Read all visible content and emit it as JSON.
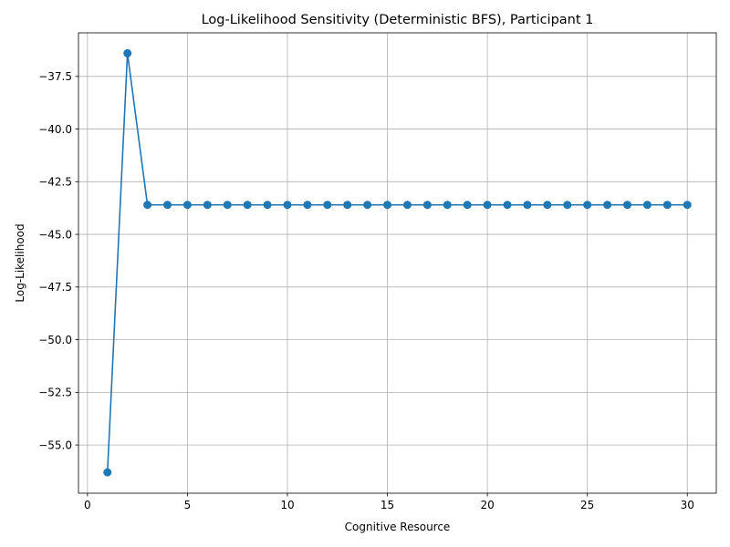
{
  "chart_data": {
    "type": "line",
    "title": "Log-Likelihood Sensitivity (Deterministic BFS), Participant 1",
    "xlabel": "Cognitive Resource",
    "ylabel": "Log-Likelihood",
    "xlim": [
      -0.45,
      31.45
    ],
    "ylim": [
      -57.29,
      -35.43
    ],
    "xticks": [
      0,
      5,
      10,
      15,
      20,
      25,
      30
    ],
    "xtick_labels": [
      "0",
      "5",
      "10",
      "15",
      "20",
      "25",
      "30"
    ],
    "yticks": [
      -55.0,
      -52.5,
      -50.0,
      -47.5,
      -45.0,
      -42.5,
      -40.0,
      -37.5
    ],
    "ytick_labels": [
      "−55.0",
      "−52.5",
      "−50.0",
      "−47.5",
      "−45.0",
      "−42.5",
      "−40.0",
      "−37.5"
    ],
    "grid": true,
    "legend": "none",
    "color": "#1f77b4",
    "marker": "circle",
    "x": [
      1,
      2,
      3,
      4,
      5,
      6,
      7,
      8,
      9,
      10,
      11,
      12,
      13,
      14,
      15,
      16,
      17,
      18,
      19,
      20,
      21,
      22,
      23,
      24,
      25,
      26,
      27,
      28,
      29,
      30
    ],
    "series": [
      {
        "values": [
          -56.3,
          -36.4,
          -43.6,
          -43.6,
          -43.6,
          -43.6,
          -43.6,
          -43.6,
          -43.6,
          -43.6,
          -43.6,
          -43.6,
          -43.6,
          -43.6,
          -43.6,
          -43.6,
          -43.6,
          -43.6,
          -43.6,
          -43.6,
          -43.6,
          -43.6,
          -43.6,
          -43.6,
          -43.6,
          -43.6,
          -43.6,
          -43.6,
          -43.6,
          -43.6
        ]
      }
    ]
  }
}
